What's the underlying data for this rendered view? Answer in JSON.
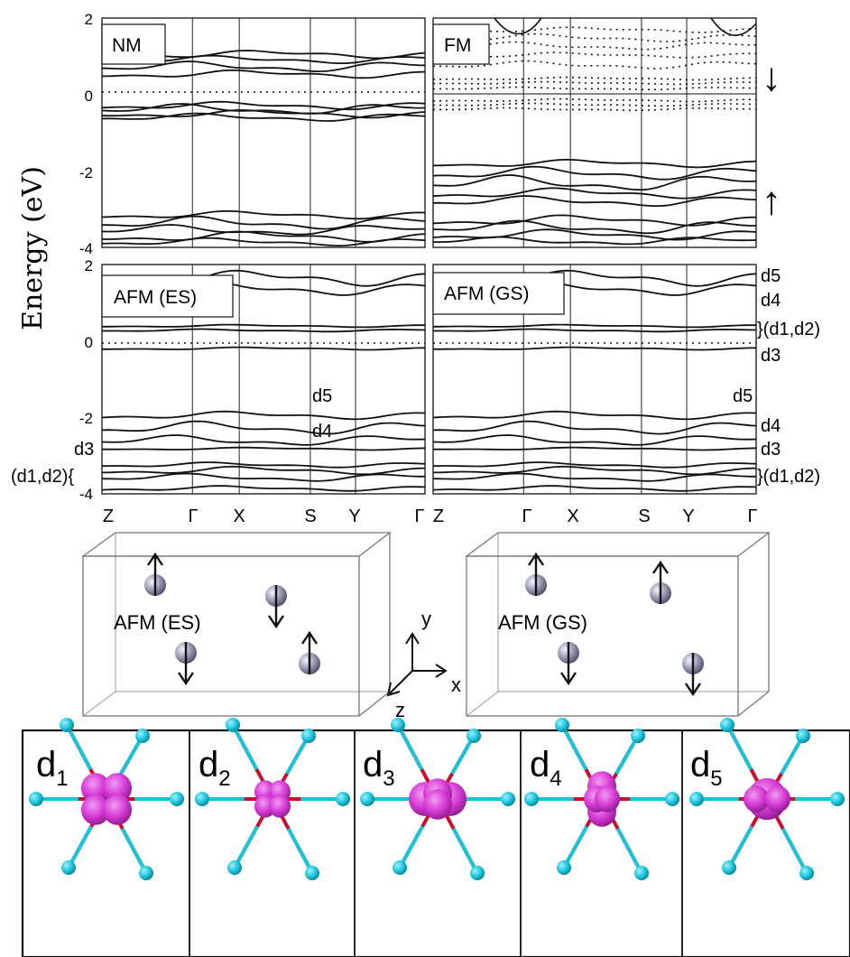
{
  "figure": {
    "y_axis_label": "Energy  (eV)",
    "y_ticks": [
      "2",
      "0",
      "-2",
      "-4"
    ],
    "k_path_labels": [
      "Z",
      "Γ",
      "X",
      "S",
      "Y",
      "Γ"
    ],
    "panels": [
      {
        "id": "nm",
        "label": "NM"
      },
      {
        "id": "fm",
        "label": "FM",
        "spin_down_arrow": "↓",
        "spin_up_arrow": "↑"
      },
      {
        "id": "afm_es",
        "label": "AFM (ES)",
        "band_annotations": {
          "d5": "d5",
          "d4": "d4",
          "d3": "d3",
          "d12": "(d1,d2){"
        }
      },
      {
        "id": "afm_gs",
        "label": "AFM (GS)",
        "band_annotations": {
          "d5_top": "d5",
          "d4_top": "d4",
          "d12_top": "}(d1,d2)",
          "d3_top": "d3",
          "d5_low": "d5",
          "d4_low": "d4",
          "d3_low": "d3",
          "d12_low": "}(d1,d2)"
        }
      }
    ],
    "spin_cells": [
      {
        "label": "AFM (ES)",
        "spins": [
          "up",
          "down",
          "down",
          "up"
        ]
      },
      {
        "label": "AFM (GS)",
        "spins": [
          "up",
          "up",
          "down",
          "down"
        ]
      }
    ],
    "axes_triad": {
      "x": "x",
      "y": "y",
      "z": "z"
    },
    "orbitals": [
      {
        "label": "d1"
      },
      {
        "label": "d2"
      },
      {
        "label": "d3"
      },
      {
        "label": "d4"
      },
      {
        "label": "d5"
      }
    ],
    "colors": {
      "atom": "#16c4dc",
      "bond": "#c8102e",
      "orbital": "#d63ad6",
      "sphere": "#8d8da8",
      "ink": "#111111"
    }
  }
}
